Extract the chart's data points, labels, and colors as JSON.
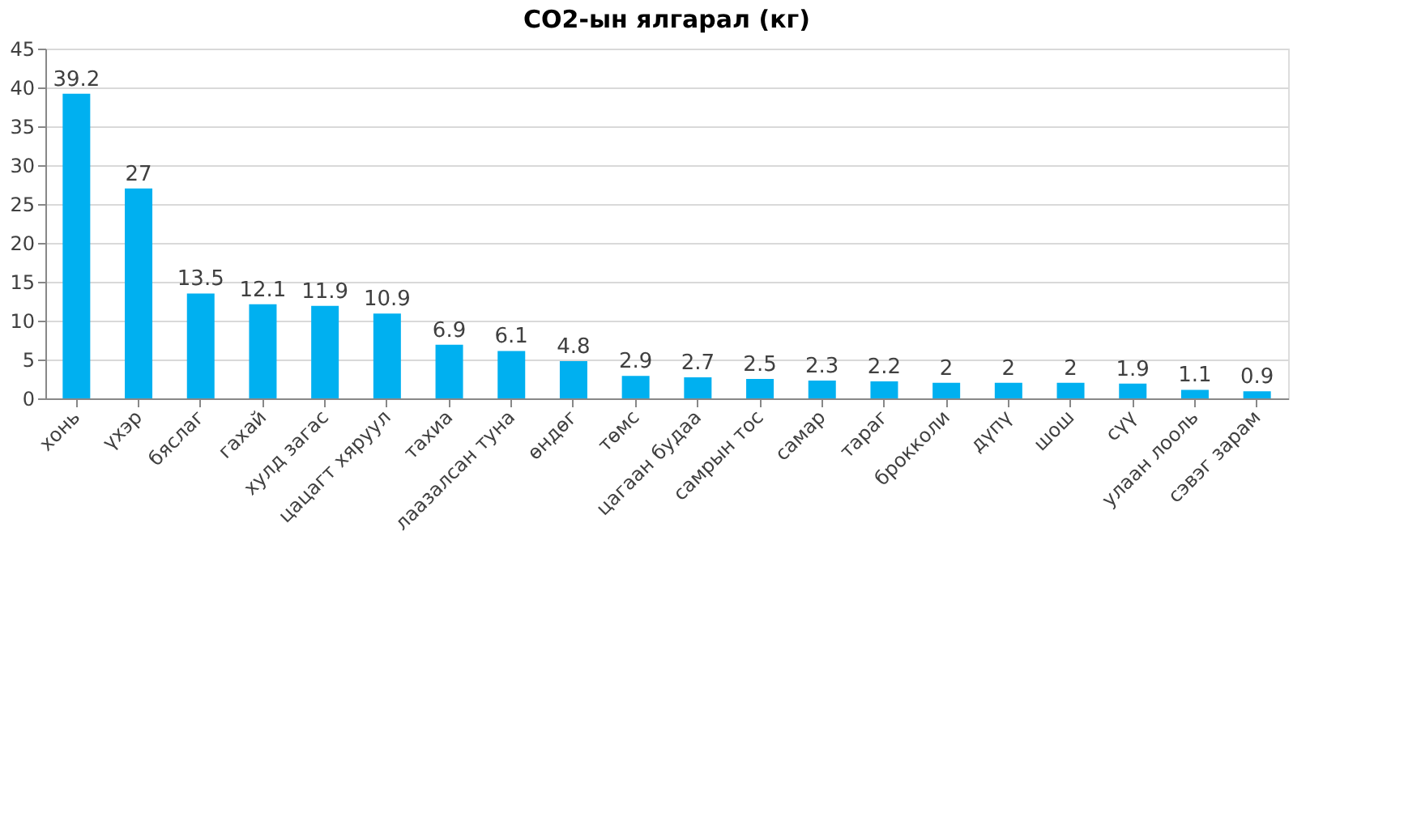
{
  "chart_data": {
    "type": "bar",
    "title": "CO2-ын ялгарал (кг)",
    "categories": [
      "хонь",
      "үхэр",
      "бяслаг",
      "гахай",
      "хулд загас",
      "цацагт хяруул",
      "тахиа",
      "лаазалсан туна",
      "өндөг",
      "төмс",
      "цагаан будаа",
      "самрын тос",
      "самар",
      "тараг",
      "брокколи",
      "дүпү",
      "шош",
      "сүү",
      "улаан лооль",
      "сэвэг зарам"
    ],
    "values": [
      39.2,
      27,
      13.5,
      12.1,
      11.9,
      10.9,
      6.9,
      6.1,
      4.8,
      2.9,
      2.7,
      2.5,
      2.3,
      2.2,
      2,
      2,
      2,
      1.9,
      1.1,
      0.9
    ],
    "color": "#00b0f0",
    "ylim": [
      0,
      45
    ],
    "yticks": [
      0,
      5,
      10,
      15,
      20,
      25,
      30,
      35,
      40,
      45
    ],
    "grid": "y",
    "data_labels": true
  }
}
